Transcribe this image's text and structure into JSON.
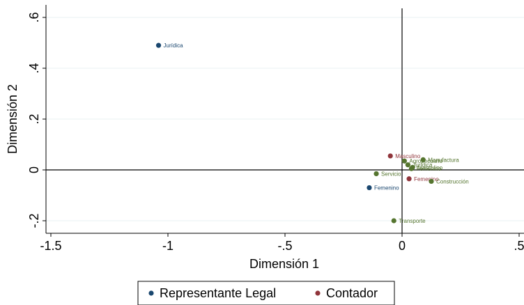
{
  "chart_data": {
    "type": "scatter",
    "xlabel": "Dimensión 1",
    "ylabel": "Dimensión 2",
    "xlim": [
      -1.5,
      0.5
    ],
    "ylim": [
      -0.2,
      0.6
    ],
    "x_ticks": [
      {
        "value": -1.5,
        "label": "-1.5"
      },
      {
        "value": -1.0,
        "label": "-1"
      },
      {
        "value": -0.5,
        "label": "-.5"
      },
      {
        "value": 0.0,
        "label": "0"
      },
      {
        "value": 0.5,
        "label": ".5"
      }
    ],
    "y_ticks": [
      {
        "value": -0.2,
        "label": "-.2"
      },
      {
        "value": 0.0,
        "label": "0"
      },
      {
        "value": 0.2,
        "label": ".2"
      },
      {
        "value": 0.4,
        "label": ".4"
      },
      {
        "value": 0.6,
        "label": ".6"
      }
    ],
    "grid": true,
    "reference_lines": {
      "x": 0,
      "y": 0
    },
    "legend_position": "bottom",
    "series": [
      {
        "name": "Representante Legal",
        "color": "#1a476f",
        "points": [
          {
            "label": "Jurídica",
            "x": -1.04,
            "y": 0.49
          },
          {
            "label": "Femenino",
            "x": -0.14,
            "y": -0.07
          }
        ]
      },
      {
        "name": "Contador",
        "color": "#90353b",
        "points": [
          {
            "label": "Masculino",
            "x": -0.05,
            "y": 0.055
          },
          {
            "label": "Femenino",
            "x": 0.03,
            "y": -0.035
          }
        ]
      },
      {
        "color": "#55752f",
        "points": [
          {
            "label": "Manufactura",
            "x": 0.09,
            "y": 0.04
          },
          {
            "label": "Agropecuario",
            "x": 0.01,
            "y": 0.035
          },
          {
            "label": "Jurídica",
            "x": 0.025,
            "y": 0.02
          },
          {
            "label": "Masculino",
            "x": 0.045,
            "y": 0.01
          },
          {
            "label": "Femenino",
            "x": 0.04,
            "y": 0.005
          },
          {
            "label": "Servicio",
            "x": -0.11,
            "y": -0.015
          },
          {
            "label": "Construcción",
            "x": 0.125,
            "y": -0.045
          },
          {
            "label": "Transporte",
            "x": -0.035,
            "y": -0.2
          }
        ]
      }
    ],
    "legend": [
      {
        "label": "Representante Legal",
        "color": "#1a476f"
      },
      {
        "label": "Contador",
        "color": "#90353b"
      }
    ]
  }
}
